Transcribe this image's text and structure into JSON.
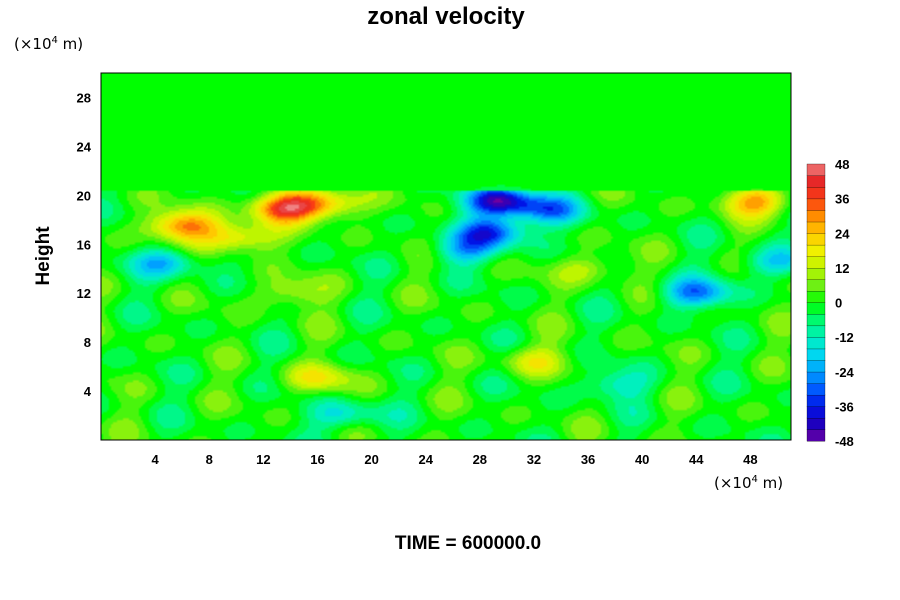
{
  "chart_data": {
    "type": "heatmap",
    "title": "zonal velocity",
    "ylabel": "Height",
    "x_unit_prefix": "(×10",
    "x_unit_exp": "4",
    "x_unit_suffix": " m)",
    "y_unit_prefix": "(×10",
    "y_unit_exp": "4",
    "y_unit_suffix": " m)",
    "footer": "TIME = 600000.0",
    "xlim": [
      0,
      51
    ],
    "ylim": [
      0,
      30
    ],
    "x_ticks": [
      4,
      8,
      12,
      16,
      20,
      24,
      28,
      32,
      36,
      40,
      44,
      48
    ],
    "y_ticks": [
      4,
      8,
      12,
      16,
      20,
      24,
      28
    ],
    "colorbar": {
      "min": -48,
      "max": 48,
      "step": 4,
      "tick_labels": [
        "48",
        "36",
        "24",
        "12",
        "0",
        "-12",
        "-24",
        "-36",
        "-48"
      ]
    },
    "field_features": [
      {
        "x": 6,
        "y": 17.5,
        "value": 30
      },
      {
        "x": 10,
        "y": 16.5,
        "value": 24
      },
      {
        "x": 13.5,
        "y": 19,
        "value": 34
      },
      {
        "x": 16.5,
        "y": 19.3,
        "value": 26
      },
      {
        "x": 48.5,
        "y": 19.5,
        "value": 26
      },
      {
        "x": 5,
        "y": 14.5,
        "value": -20
      },
      {
        "x": 29.5,
        "y": 19.5,
        "value": -42
      },
      {
        "x": 29,
        "y": 17,
        "value": -32
      },
      {
        "x": 33,
        "y": 18.8,
        "value": -24
      },
      {
        "x": 27,
        "y": 15.5,
        "value": -18
      },
      {
        "x": 44,
        "y": 12,
        "value": -26
      },
      {
        "x": 50,
        "y": 14.5,
        "value": -18
      },
      {
        "x": 16,
        "y": 5,
        "value": 16
      },
      {
        "x": 32,
        "y": 6.5,
        "value": 14
      },
      {
        "x": 38,
        "y": 4.5,
        "value": -14
      },
      {
        "x": 14,
        "y": 12,
        "value": 12
      },
      {
        "x": 36,
        "y": 14,
        "value": 12
      },
      {
        "x": 18,
        "y": 2,
        "value": -16
      }
    ]
  }
}
